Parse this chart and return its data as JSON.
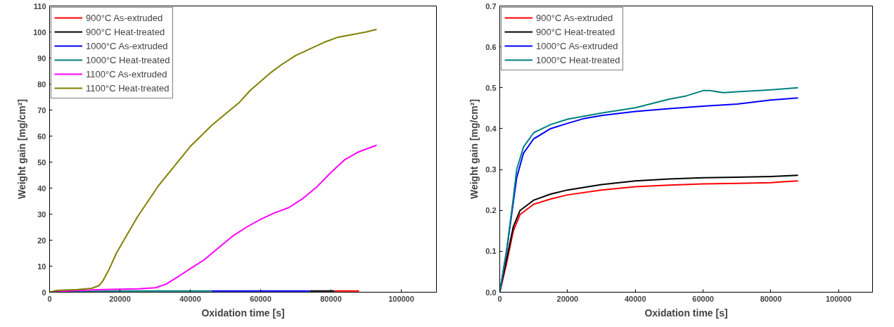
{
  "chart_data": [
    {
      "type": "line",
      "xlabel": "Oxidation time [s]",
      "ylabel": "Weight gain [mg/cm²]",
      "xlim": [
        0,
        110000
      ],
      "xticks": [
        0,
        20000,
        40000,
        60000,
        80000,
        100000
      ],
      "ylim": [
        0,
        110
      ],
      "yticks": [
        0,
        10,
        20,
        30,
        40,
        50,
        60,
        70,
        80,
        90,
        100,
        110
      ],
      "legend": "top left",
      "grid": false,
      "series": [
        {
          "name": "900°C As-extruded",
          "color": "#ff0000",
          "x": [
            81000,
            88000
          ],
          "values": [
            0.5,
            0.5
          ]
        },
        {
          "name": "900°C Heat-treated",
          "color": "#000000",
          "x": [
            74000,
            81000
          ],
          "values": [
            0.5,
            0.5
          ]
        },
        {
          "name": "1000°C As-extruded",
          "color": "#0000ff",
          "x": [
            46000,
            74000
          ],
          "values": [
            0.5,
            0.5
          ]
        },
        {
          "name": "1000°C Heat-treated",
          "color": "#008080",
          "x": [
            0,
            20000,
            46000
          ],
          "values": [
            0,
            0.5,
            0.5
          ]
        },
        {
          "name": "1100°C As-extruded",
          "color": "#ff00ff",
          "x": [
            0,
            5000,
            15000,
            25000,
            30000,
            33000,
            36000,
            40000,
            44000,
            48000,
            52000,
            56000,
            60000,
            64000,
            68000,
            72000,
            76000,
            80000,
            84000,
            88000,
            93000
          ],
          "values": [
            0,
            0.5,
            1,
            1.3,
            1.7,
            3,
            5.5,
            9,
            12.5,
            17,
            21.5,
            25,
            28,
            30.5,
            32.5,
            36,
            40.5,
            46,
            51,
            54,
            56.5
          ]
        },
        {
          "name": "1100°C Heat-treated",
          "color": "#808000",
          "x": [
            0,
            2000,
            8000,
            12000,
            14000,
            15000,
            17000,
            19000,
            22000,
            25000,
            28000,
            31000,
            34000,
            37000,
            40000,
            43000,
            46000,
            50000,
            54000,
            57000,
            60000,
            63000,
            66000,
            70000,
            74000,
            78000,
            82000,
            86000,
            90000,
            93000
          ],
          "values": [
            0,
            0.7,
            1,
            1.5,
            2.5,
            4,
            9,
            15,
            22,
            29,
            35,
            41,
            46,
            51,
            56,
            60,
            64,
            68.5,
            73,
            77.5,
            81,
            84.5,
            87.5,
            91,
            93.5,
            96,
            98,
            99,
            100,
            101
          ]
        }
      ]
    },
    {
      "type": "line",
      "xlabel": "Oxidation time [s]",
      "ylabel": "Weight gain [mg/cm²]",
      "xlim": [
        0,
        110000
      ],
      "xticks": [
        0,
        20000,
        40000,
        60000,
        80000,
        100000
      ],
      "ylim": [
        0,
        0.7
      ],
      "yticks": [
        {
          "value": 0,
          "label": "0.0"
        },
        0.1,
        0.2,
        0.3,
        0.4,
        0.5,
        0.6,
        0.7
      ],
      "legend": "top left",
      "grid": false,
      "series": [
        {
          "name": "900°C As-extruded",
          "color": "#ff0000",
          "x": [
            0,
            2000,
            4000,
            6000,
            10000,
            15000,
            20000,
            30000,
            40000,
            50000,
            60000,
            70000,
            80000,
            83500,
            88000
          ],
          "values": [
            0,
            0.07,
            0.15,
            0.19,
            0.215,
            0.228,
            0.238,
            0.25,
            0.258,
            0.262,
            0.265,
            0.266,
            0.268,
            0.27,
            0.272
          ]
        },
        {
          "name": "900°C Heat-treated",
          "color": "#000000",
          "x": [
            0,
            2000,
            4000,
            6000,
            10000,
            15000,
            20000,
            30000,
            40000,
            50000,
            60000,
            70000,
            80000,
            83500,
            88000
          ],
          "values": [
            0,
            0.08,
            0.16,
            0.2,
            0.225,
            0.24,
            0.25,
            0.263,
            0.272,
            0.277,
            0.28,
            0.281,
            0.283,
            0.284,
            0.286
          ]
        },
        {
          "name": "1000°C As-extruded",
          "color": "#0000ff",
          "x": [
            0,
            2000,
            4000,
            5000,
            7000,
            10000,
            15000,
            20000,
            25000,
            30000,
            40000,
            50000,
            60000,
            70000,
            80000,
            88000
          ],
          "values": [
            0,
            0.1,
            0.22,
            0.28,
            0.34,
            0.375,
            0.4,
            0.413,
            0.425,
            0.432,
            0.442,
            0.449,
            0.455,
            0.46,
            0.47,
            0.475
          ]
        },
        {
          "name": "1000°C Heat-treated",
          "color": "#008080",
          "x": [
            0,
            2000,
            4000,
            5000,
            7000,
            10000,
            15000,
            20000,
            30000,
            40000,
            50000,
            55000,
            60000,
            62000,
            66000,
            70000,
            80000,
            88000
          ],
          "values": [
            0,
            0.1,
            0.23,
            0.3,
            0.355,
            0.39,
            0.41,
            0.423,
            0.438,
            0.451,
            0.472,
            0.48,
            0.493,
            0.493,
            0.488,
            0.49,
            0.495,
            0.5
          ]
        }
      ]
    }
  ]
}
